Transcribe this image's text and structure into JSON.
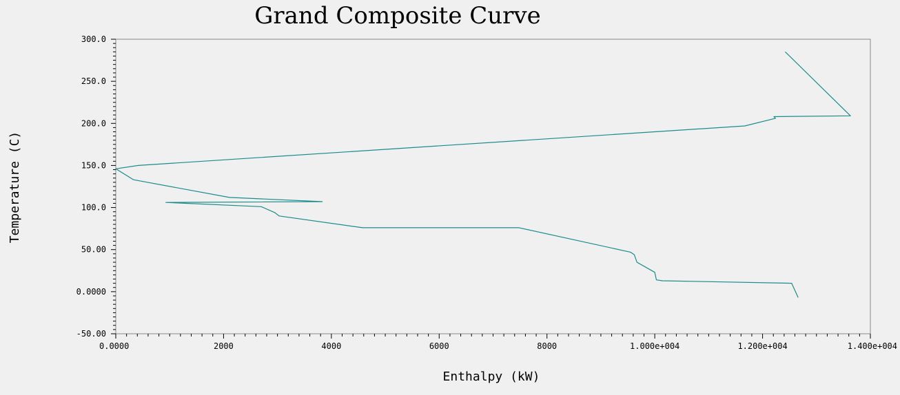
{
  "chart_data": {
    "type": "line",
    "title": "Grand Composite Curve",
    "xlabel": "Enthalpy (kW)",
    "ylabel": "Temperature (C)",
    "xlim": [
      0,
      14000
    ],
    "ylim": [
      -50,
      300
    ],
    "grid": false,
    "x_ticks": [
      {
        "value": 0,
        "label": "0.0000"
      },
      {
        "value": 2000,
        "label": "2000"
      },
      {
        "value": 4000,
        "label": "4000"
      },
      {
        "value": 6000,
        "label": "6000"
      },
      {
        "value": 8000,
        "label": "8000"
      },
      {
        "value": 10000,
        "label": "1.000e+004"
      },
      {
        "value": 12000,
        "label": "1.200e+004"
      },
      {
        "value": 14000,
        "label": "1.400e+004"
      }
    ],
    "y_ticks": [
      {
        "value": 300,
        "label": "300.0"
      },
      {
        "value": 250,
        "label": "250.0"
      },
      {
        "value": 200,
        "label": "200.0"
      },
      {
        "value": 150,
        "label": "150.0"
      },
      {
        "value": 100,
        "label": "100.0"
      },
      {
        "value": 50,
        "label": "50.00"
      },
      {
        "value": 0,
        "label": "0.0000"
      },
      {
        "value": -50,
        "label": "-50.00"
      }
    ],
    "series": [
      {
        "color": "#1a8a8a",
        "points": [
          [
            12660,
            -7
          ],
          [
            12540,
            10
          ],
          [
            10140,
            13
          ],
          [
            10030,
            14
          ],
          [
            10000,
            23
          ],
          [
            9670,
            35
          ],
          [
            9620,
            44
          ],
          [
            9550,
            47
          ],
          [
            7480,
            76
          ],
          [
            4580,
            76
          ],
          [
            3030,
            90
          ],
          [
            2950,
            94
          ],
          [
            2700,
            101
          ],
          [
            930,
            106
          ],
          [
            3830,
            107
          ],
          [
            2110,
            112
          ],
          [
            330,
            133
          ],
          [
            0,
            146
          ],
          [
            420,
            150
          ],
          [
            11670,
            197
          ],
          [
            12240,
            206
          ],
          [
            12210,
            208
          ],
          [
            13630,
            209
          ],
          [
            12420,
            285
          ]
        ]
      }
    ]
  }
}
